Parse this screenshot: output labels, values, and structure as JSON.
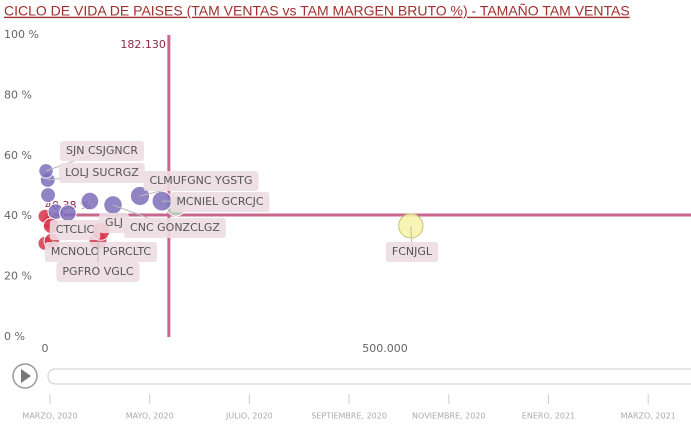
{
  "chart_data": {
    "type": "scatter",
    "title": "CICLO DE VIDA DE PAISES (TAM VENTAS vs TAM MARGEN BRUTO %) - TAMAÑO TAM VENTAS",
    "x": [
      1500,
      4000,
      139700,
      172000,
      82000,
      100000,
      8800,
      10000,
      78000,
      538000,
      192600,
      4500,
      33800,
      66000,
      16000,
      0,
      0,
      7000
    ],
    "y": [
      55,
      52,
      46.7,
      45,
      35,
      43.7,
      36.8,
      31.8,
      31.8,
      36.8,
      43.4,
      47,
      41,
      45,
      41.5,
      40,
      31,
      38
    ],
    "point_labels": [
      "SJN CSJGNCR",
      "LOLJ SUCRGZ",
      "CLMUFGNC YGSTG",
      "MCNIEL GCRCJC",
      "GLJ",
      "CNC GONZCLGZ",
      "CTCLIC",
      "MCNOLO PGRCLTC",
      "PGFRO VGLC",
      "FCNJGL",
      null,
      null,
      null,
      null,
      null,
      null,
      null,
      null
    ],
    "point_colors": [
      "#7c6fbb",
      "#7c6fbb",
      "#7c6fbb",
      "#7c6fbb",
      "#d7354b",
      "#7c6fbb",
      "#d7354b",
      "#d7354b",
      "#d7354b",
      "#f7f2a6",
      "#b9cdb6",
      "#7c6fbb",
      "#7c6fbb",
      "#7c6fbb",
      "#7c6fbb",
      "#d7354b",
      "#d7354b",
      "#d7354b"
    ],
    "xlim": [
      0,
      950000
    ],
    "ylim": [
      0,
      100
    ],
    "xticks": [
      0,
      {
        "value": 500000,
        "label": "500.000"
      }
    ],
    "yticks": [
      {
        "value": 0,
        "label": "0 %"
      },
      {
        "value": 20,
        "label": "20 %"
      },
      {
        "value": 40,
        "label": "40 %"
      },
      {
        "value": 60,
        "label": "60 %"
      },
      {
        "value": 80,
        "label": "80 %"
      },
      {
        "value": 100,
        "label": "100 %"
      }
    ],
    "reference_x": {
      "value": 182130,
      "label": "182.130"
    },
    "reference_y": {
      "value": 40.38,
      "label": "40.38 %"
    },
    "reference_color": "#c8668c",
    "timeline": [
      "MARZO, 2020",
      "MAYO, 2020",
      "JULIO, 2020",
      "SEPTIEMBRE, 2020",
      "NOVIEMBRE, 2020",
      "ENERO, 2021",
      "MARZO, 2021"
    ]
  }
}
